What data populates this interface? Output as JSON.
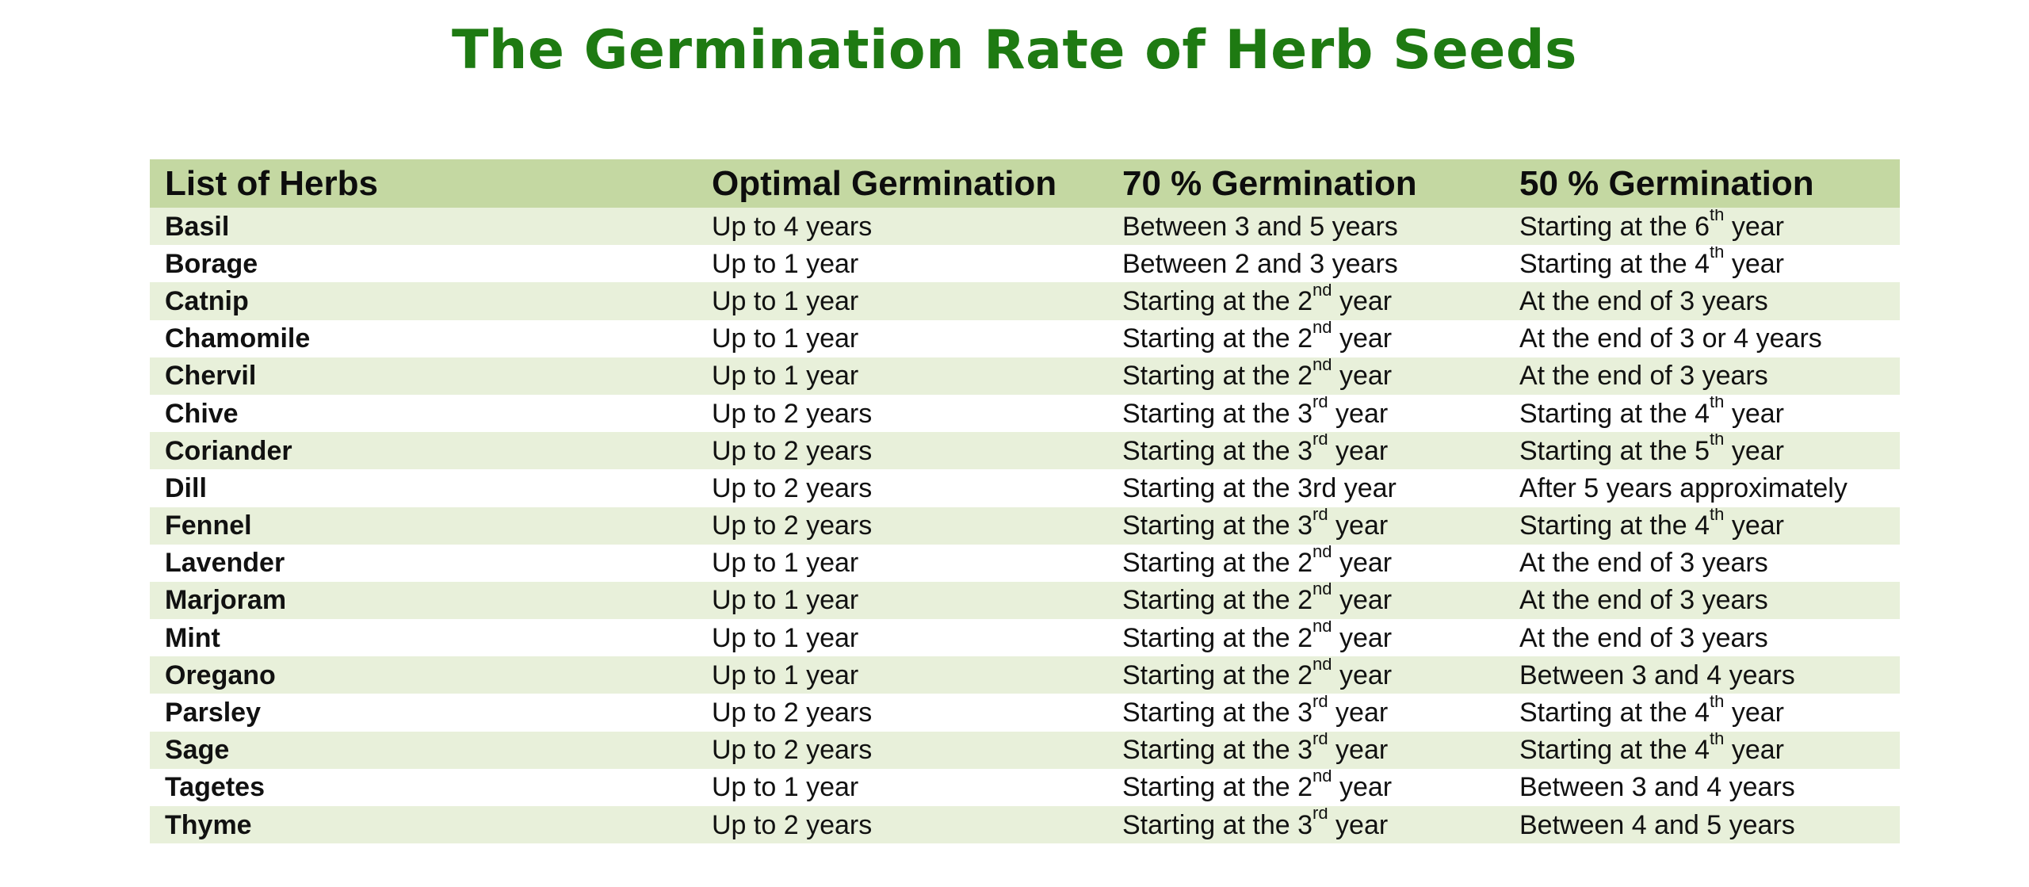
{
  "title": "The Germination Rate of Herb Seeds",
  "columns": [
    "List of Herbs",
    "Optimal Germination",
    "70 % Germination",
    "50 % Germination"
  ],
  "rows": [
    {
      "herb": "Basil",
      "optimal": "Up to 4 years",
      "p70": {
        "text": "Between 3 and 5 years"
      },
      "p50": {
        "pre": "Starting at the 6",
        "sup": "th",
        "post": " year"
      }
    },
    {
      "herb": "Borage",
      "optimal": "Up to 1 year",
      "p70": {
        "text": "Between 2 and 3 years"
      },
      "p50": {
        "pre": "Starting at the 4",
        "sup": "th",
        "post": " year"
      }
    },
    {
      "herb": "Catnip",
      "optimal": "Up to 1 year",
      "p70": {
        "pre": "Starting at the 2",
        "sup": "nd",
        "post": " year"
      },
      "p50": {
        "text": "At the end of 3 years"
      }
    },
    {
      "herb": "Chamomile",
      "optimal": "Up to 1 year",
      "p70": {
        "pre": "Starting at the 2",
        "sup": "nd",
        "post": " year"
      },
      "p50": {
        "text": "At the end of 3 or 4 years"
      }
    },
    {
      "herb": "Chervil",
      "optimal": "Up to 1 year",
      "p70": {
        "pre": "Starting at the 2",
        "sup": "nd",
        "post": " year"
      },
      "p50": {
        "text": "At the end of 3 years"
      }
    },
    {
      "herb": "Chive",
      "optimal": "Up to 2 years",
      "p70": {
        "pre": "Starting at the 3",
        "sup": "rd",
        "post": " year"
      },
      "p50": {
        "pre": "Starting at the 4",
        "sup": "th",
        "post": " year"
      }
    },
    {
      "herb": "Coriander",
      "optimal": "Up to 2 years",
      "p70": {
        "pre": "Starting at the 3",
        "sup": "rd",
        "post": " year"
      },
      "p50": {
        "pre": "Starting at the 5",
        "sup": "th",
        "post": " year"
      }
    },
    {
      "herb": "Dill",
      "optimal": "Up to 2 years",
      "p70": {
        "text": "Starting at the 3rd year"
      },
      "p50": {
        "text": "After 5 years approximately"
      }
    },
    {
      "herb": "Fennel",
      "optimal": "Up to 2 years",
      "p70": {
        "pre": "Starting at the 3",
        "sup": "rd",
        "post": " year"
      },
      "p50": {
        "pre": "Starting at the 4",
        "sup": "th",
        "post": " year"
      }
    },
    {
      "herb": "Lavender",
      "optimal": "Up to 1 year",
      "p70": {
        "pre": "Starting at the 2",
        "sup": "nd",
        "post": " year"
      },
      "p50": {
        "text": "At the end of 3 years"
      }
    },
    {
      "herb": "Marjoram",
      "optimal": "Up to 1 year",
      "p70": {
        "pre": "Starting at the 2",
        "sup": "nd",
        "post": " year"
      },
      "p50": {
        "text": "At the end of 3 years"
      }
    },
    {
      "herb": "Mint",
      "optimal": "Up to 1 year",
      "p70": {
        "pre": "Starting at the 2",
        "sup": "nd",
        "post": " year"
      },
      "p50": {
        "text": "At the end of 3 years"
      }
    },
    {
      "herb": "Oregano",
      "optimal": "Up to 1 year",
      "p70": {
        "pre": "Starting at the 2",
        "sup": "nd",
        "post": " year"
      },
      "p50": {
        "text": "Between 3 and 4 years"
      }
    },
    {
      "herb": "Parsley",
      "optimal": "Up to 2 years",
      "p70": {
        "pre": "Starting at the 3",
        "sup": "rd",
        "post": " year"
      },
      "p50": {
        "pre": "Starting at the 4",
        "sup": "th",
        "post": " year"
      }
    },
    {
      "herb": "Sage",
      "optimal": "Up to 2 years",
      "p70": {
        "pre": "Starting at the 3",
        "sup": "rd",
        "post": " year"
      },
      "p50": {
        "pre": "Starting at the 4",
        "sup": "th",
        "post": " year"
      }
    },
    {
      "herb": "Tagetes",
      "optimal": "Up to 1 year",
      "p70": {
        "pre": "Starting at the 2",
        "sup": "nd",
        "post": " year"
      },
      "p50": {
        "text": "Between 3 and 4 years"
      }
    },
    {
      "herb": "Thyme",
      "optimal": "Up to 2 years",
      "p70": {
        "pre": "Starting at the 3",
        "sup": "rd",
        "post": " year"
      },
      "p50": {
        "text": "Between 4 and 5 years"
      }
    }
  ],
  "colors": {
    "title": "#1e7a12",
    "header_bg": "#c4d8a2",
    "band_bg": "#e8f0da",
    "row_bg": "#ffffff"
  }
}
